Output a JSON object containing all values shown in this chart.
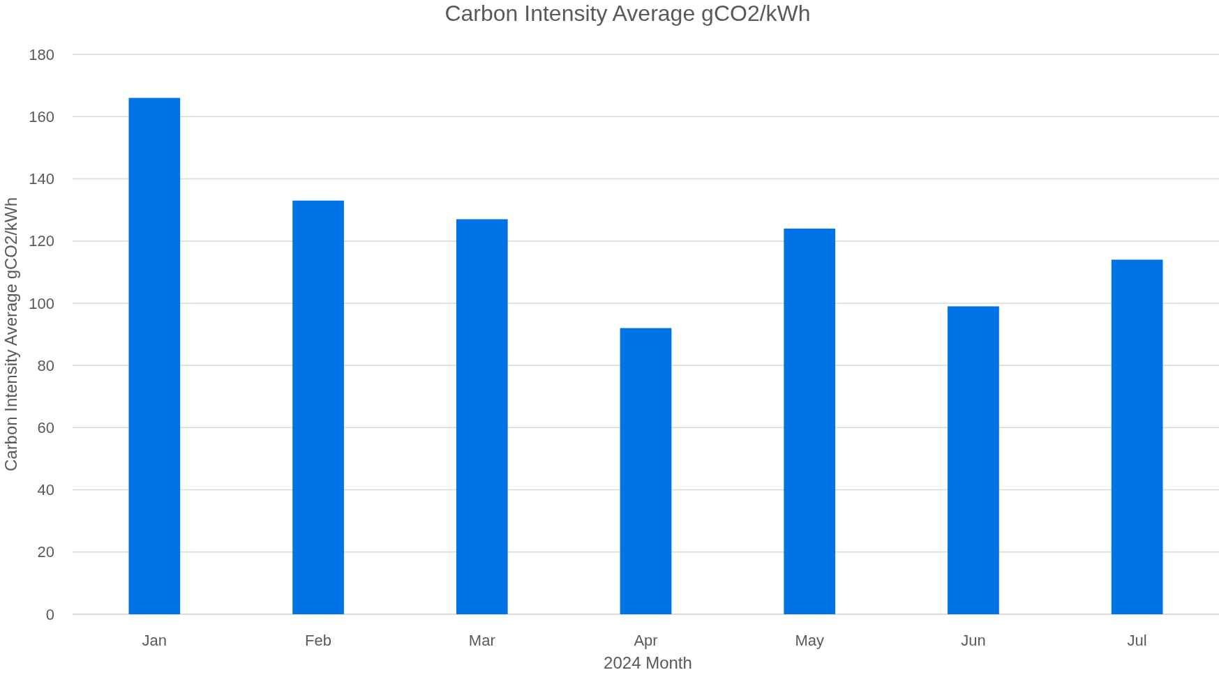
{
  "chart_data": {
    "type": "bar",
    "title": "Carbon Intensity Average gCO2/kWh",
    "xlabel": "2024 Month",
    "ylabel": "Carbon Intensity Average gCO2/kWh",
    "categories": [
      "Jan",
      "Feb",
      "Mar",
      "Apr",
      "May",
      "Jun",
      "Jul"
    ],
    "values": [
      166,
      133,
      127,
      92,
      124,
      99,
      114
    ],
    "color": "#0073e6",
    "ylim": [
      0,
      180
    ],
    "yticks": [
      0,
      20,
      40,
      60,
      80,
      100,
      120,
      140,
      160,
      180
    ],
    "grid": "y"
  }
}
